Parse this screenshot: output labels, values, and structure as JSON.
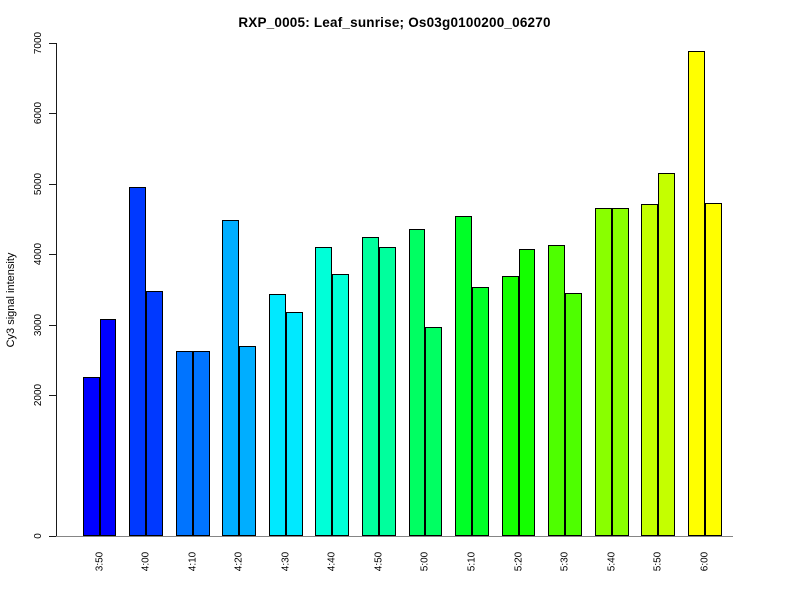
{
  "title": "RXP_0005: Leaf_sunrise; Os03g0100200_06270",
  "chart_data": {
    "type": "bar",
    "title": "RXP_0005: Leaf_sunrise; Os03g0100200_06270",
    "xlabel": "",
    "ylabel": "Cy3 signal intensity",
    "ylim": [
      0,
      7000
    ],
    "yticks": [
      0,
      2000,
      3000,
      4000,
      5000,
      6000,
      7000
    ],
    "grid": false,
    "legend": "none",
    "bars_per_category": 2,
    "categories": [
      "3:50",
      "4:00",
      "4:10",
      "4:20",
      "4:30",
      "4:40",
      "4:50",
      "5:00",
      "5:10",
      "5:20",
      "5:30",
      "5:40",
      "5:50",
      "6:00"
    ],
    "series": [
      {
        "values": [
          2260,
          4950,
          2630,
          4490,
          3440,
          4100,
          4250,
          4360,
          4540,
          3690,
          4130,
          4660,
          4710,
          6890
        ]
      },
      {
        "values": [
          3080,
          3480,
          2620,
          2700,
          3180,
          3720,
          4100,
          2970,
          3540,
          4080,
          3450,
          4660,
          5150,
          4730
        ]
      }
    ],
    "category_colors": [
      "#0000FF",
      "#0039FF",
      "#0074FF",
      "#00AEFF",
      "#00E9FF",
      "#00FFD8",
      "#00FF9D",
      "#00FF62",
      "#00FF27",
      "#14FF00",
      "#4EFF00",
      "#89FF00",
      "#C4FF00",
      "#FFFF00"
    ],
    "bar_border_color": "#000000",
    "axis_color": "#1a1a1a",
    "baseline_color": "#858585",
    "background_color": "#FFFFFF",
    "text_color": "#000000"
  }
}
